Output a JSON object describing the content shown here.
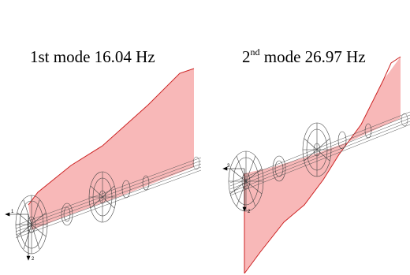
{
  "panels": [
    {
      "title_prefix": "1st mode 16.04 Hz",
      "axis_labels": [
        "1",
        "2"
      ]
    },
    {
      "title_ordinal": "2",
      "title_suffix_sup": "nd",
      "title_rest": " mode 26.97 Hz",
      "axis_labels": [
        "3",
        "2"
      ]
    }
  ],
  "colors": {
    "mode_fill": "#f8b8b8",
    "mode_stroke": "#cc2222",
    "wireframe": "#555555"
  }
}
